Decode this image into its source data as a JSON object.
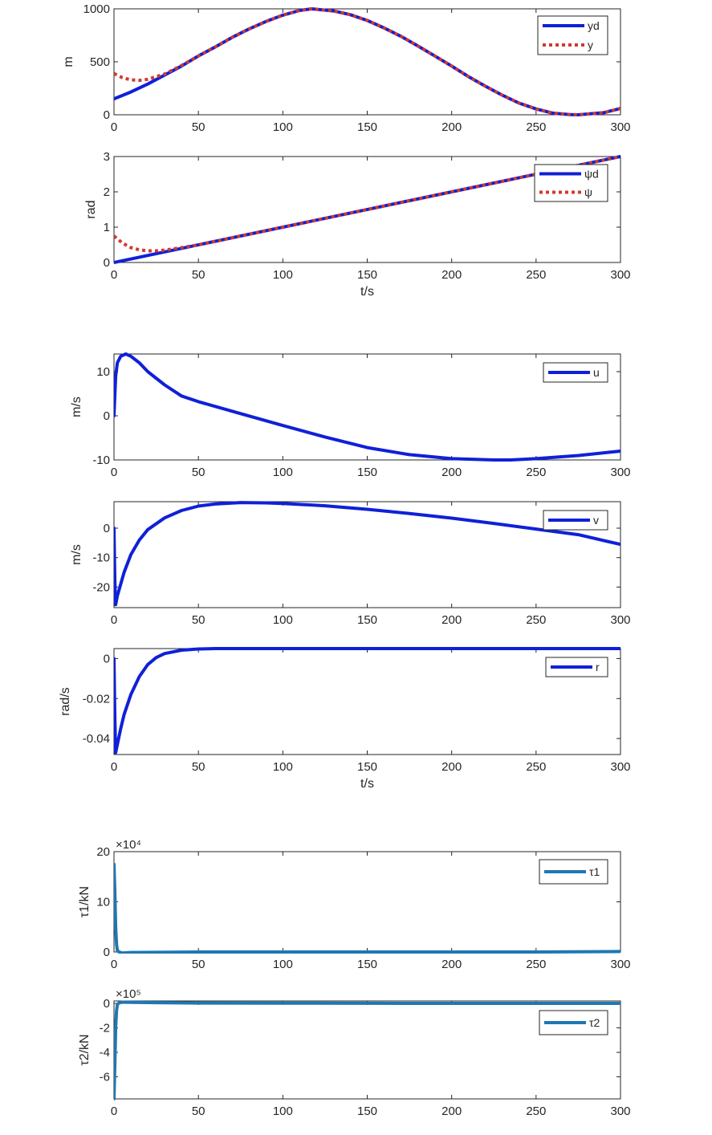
{
  "colors": {
    "desired": "#1020d8",
    "actual": "#d03a30",
    "tau": "#1f77b4",
    "axis": "#262626"
  },
  "chart_data": [
    {
      "type": "line",
      "ylabel": "m",
      "xlabel": "",
      "xlim": [
        0,
        300
      ],
      "ylim": [
        0,
        1000
      ],
      "xticks": [
        "0",
        "50",
        "100",
        "150",
        "200",
        "250",
        "300"
      ],
      "yticks": [
        "0",
        "500",
        "1000"
      ],
      "legend_position": "top-right",
      "series": [
        {
          "name": "yd",
          "style": "solid",
          "x": [
            0,
            10,
            20,
            30,
            40,
            50,
            60,
            70,
            80,
            90,
            100,
            110,
            117,
            130,
            140,
            150,
            160,
            170,
            180,
            190,
            200,
            210,
            220,
            230,
            240,
            250,
            260,
            270,
            275,
            290,
            300
          ],
          "y": [
            150,
            215,
            290,
            375,
            460,
            555,
            640,
            730,
            810,
            880,
            940,
            985,
            1000,
            980,
            945,
            890,
            820,
            740,
            650,
            555,
            460,
            360,
            270,
            185,
            110,
            55,
            15,
            2,
            0,
            20,
            60
          ]
        },
        {
          "name": "y",
          "style": "dotted",
          "x": [
            0,
            5,
            10,
            15,
            20,
            25,
            30,
            40,
            50,
            60,
            70,
            80,
            90,
            100,
            110,
            117,
            130,
            140,
            150,
            160,
            170,
            180,
            190,
            200,
            210,
            220,
            230,
            240,
            250,
            260,
            270,
            275,
            290,
            300
          ],
          "y": [
            390,
            350,
            330,
            325,
            335,
            360,
            385,
            465,
            555,
            640,
            730,
            810,
            880,
            940,
            985,
            1000,
            980,
            945,
            890,
            820,
            740,
            650,
            555,
            460,
            360,
            270,
            185,
            110,
            55,
            15,
            2,
            0,
            20,
            60
          ]
        }
      ]
    },
    {
      "type": "line",
      "ylabel": "rad",
      "xlabel": "t/s",
      "xlim": [
        0,
        300
      ],
      "ylim": [
        0,
        3
      ],
      "xticks": [
        "0",
        "50",
        "100",
        "150",
        "200",
        "250",
        "300"
      ],
      "yticks": [
        "0",
        "1",
        "2",
        "3"
      ],
      "legend_position": "top-right",
      "series": [
        {
          "name": "ψd",
          "style": "solid",
          "x": [
            0,
            300
          ],
          "y": [
            0,
            3
          ]
        },
        {
          "name": "ψ",
          "style": "dotted",
          "x": [
            0,
            5,
            10,
            15,
            20,
            25,
            30,
            40,
            50,
            100,
            200,
            300
          ],
          "y": [
            0.75,
            0.55,
            0.42,
            0.36,
            0.33,
            0.33,
            0.35,
            0.42,
            0.5,
            1.0,
            2.0,
            3.0
          ]
        }
      ]
    },
    {
      "type": "line",
      "ylabel": "m/s",
      "xlabel": "",
      "xlim": [
        0,
        300
      ],
      "ylim": [
        -10,
        14
      ],
      "xticks": [
        "0",
        "50",
        "100",
        "150",
        "200",
        "250",
        "300"
      ],
      "yticks": [
        "-10",
        "0",
        "10"
      ],
      "legend_position": "top-right",
      "series": [
        {
          "name": "u",
          "style": "solid",
          "x": [
            0,
            1,
            2,
            4,
            7,
            10,
            15,
            20,
            30,
            40,
            50,
            75,
            100,
            125,
            150,
            175,
            200,
            225,
            235,
            250,
            275,
            300
          ],
          "y": [
            0,
            9,
            12,
            13.5,
            14,
            13.5,
            12,
            10,
            7,
            4.5,
            3.2,
            0.5,
            -2.2,
            -4.8,
            -7.2,
            -8.8,
            -9.7,
            -10,
            -10,
            -9.7,
            -9,
            -8
          ]
        }
      ]
    },
    {
      "type": "line",
      "ylabel": "m/s",
      "xlabel": "",
      "xlim": [
        0,
        300
      ],
      "ylim": [
        -27,
        9
      ],
      "xticks": [
        "0",
        "50",
        "100",
        "150",
        "200",
        "250",
        "300"
      ],
      "yticks": [
        "-20",
        "-10",
        "0"
      ],
      "legend_position": "top-right",
      "series": [
        {
          "name": "v",
          "style": "solid",
          "x": [
            0,
            0.5,
            1,
            2,
            4,
            6,
            10,
            15,
            20,
            30,
            40,
            50,
            60,
            75,
            90,
            100,
            125,
            150,
            175,
            200,
            225,
            250,
            275,
            300
          ],
          "y": [
            0,
            -18,
            -26,
            -23,
            -19,
            -15,
            -9,
            -4,
            -0.5,
            3.5,
            6,
            7.5,
            8.2,
            8.7,
            8.6,
            8.4,
            7.6,
            6.4,
            5,
            3.4,
            1.6,
            -0.3,
            -2.2,
            -5.5
          ]
        }
      ]
    },
    {
      "type": "line",
      "ylabel": "rad/s",
      "xlabel": "t/s",
      "xlim": [
        0,
        300
      ],
      "ylim": [
        -0.048,
        0.005
      ],
      "xticks": [
        "0",
        "50",
        "100",
        "150",
        "200",
        "250",
        "300"
      ],
      "yticks": [
        "-0.04",
        "-0.02",
        "0"
      ],
      "legend_position": "top-right",
      "series": [
        {
          "name": "r",
          "style": "solid",
          "x": [
            0,
            0.5,
            1,
            2,
            4,
            6,
            10,
            15,
            20,
            25,
            30,
            40,
            50,
            60,
            80,
            100,
            150,
            200,
            250,
            300
          ],
          "y": [
            0,
            -0.03,
            -0.047,
            -0.043,
            -0.035,
            -0.028,
            -0.018,
            -0.009,
            -0.003,
            0.0005,
            0.0025,
            0.0042,
            0.0048,
            0.005,
            0.005,
            0.005,
            0.005,
            0.005,
            0.005,
            0.005
          ]
        }
      ]
    },
    {
      "type": "line",
      "ylabel": "τ1/kN",
      "xlabel": "",
      "xlim": [
        0,
        300
      ],
      "ylim": [
        0,
        20
      ],
      "exponent": "×10⁴",
      "xticks": [
        "0",
        "50",
        "100",
        "150",
        "200",
        "250",
        "300"
      ],
      "yticks": [
        "0",
        "10",
        "20"
      ],
      "legend_position": "top-right",
      "series": [
        {
          "name": "τ1",
          "style": "solid",
          "x": [
            0,
            0.5,
            1,
            1.5,
            2,
            3,
            5,
            10,
            50,
            100,
            150,
            200,
            250,
            300
          ],
          "y": [
            17.5,
            12,
            5,
            1.5,
            0.3,
            0,
            -0.2,
            -0.1,
            0,
            0,
            0,
            0,
            0,
            0.1
          ]
        }
      ]
    },
    {
      "type": "line",
      "ylabel": "τ2/kN",
      "xlabel": "",
      "xlim": [
        0,
        300
      ],
      "ylim": [
        -7.8,
        0.2
      ],
      "exponent": "×10⁵",
      "xticks": [
        "0",
        "50",
        "100",
        "150",
        "200",
        "250",
        "300"
      ],
      "yticks": [
        "-6",
        "-4",
        "-2",
        "0"
      ],
      "legend_position": "top-right",
      "series": [
        {
          "name": "τ2",
          "style": "solid",
          "x": [
            0,
            0.5,
            1,
            1.5,
            2,
            3,
            5,
            10,
            30,
            50,
            100,
            150,
            200,
            250,
            300
          ],
          "y": [
            -7.8,
            -5,
            -2,
            -0.6,
            -0.1,
            0.05,
            0.1,
            0.08,
            0.05,
            0.03,
            0.02,
            0.01,
            0,
            0,
            0
          ]
        }
      ]
    }
  ]
}
